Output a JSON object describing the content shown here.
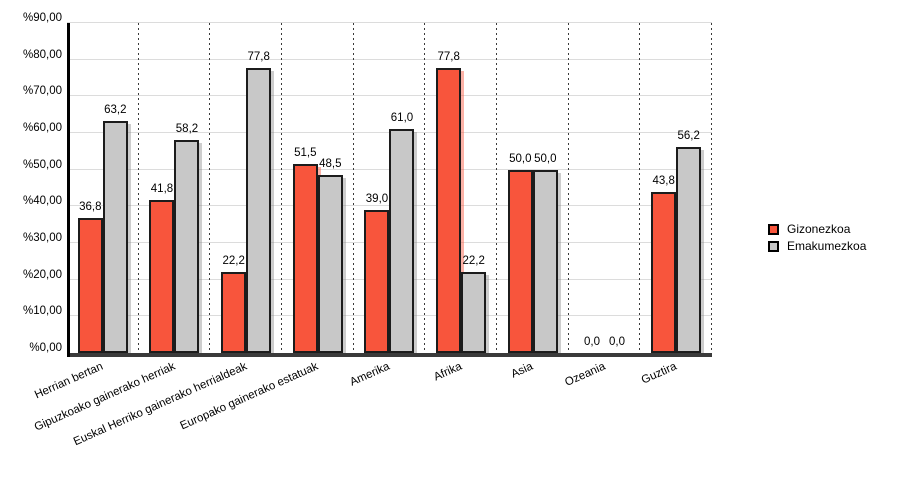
{
  "chart_data": {
    "type": "bar",
    "title": "",
    "categories": [
      "Herrian bertan",
      "Gipuzkoako gainerako herriak",
      "Euskal Herriko gainerako herrialdeak",
      "Europako gainerako estatuak",
      "Amerika",
      "Afrika",
      "Asia",
      "Ozeania",
      "Guztira"
    ],
    "series": [
      {
        "name": "Gizonezkoa",
        "color": "#F8553C",
        "shadow_color": "rgba(248,85,60,0.45)",
        "values": [
          36.8,
          41.8,
          22.2,
          51.5,
          39.0,
          77.8,
          50.0,
          0.0,
          43.8
        ],
        "labels": [
          "36,8",
          "41,8",
          "22,2",
          "51,5",
          "39,0",
          "77,8",
          "50,0",
          "0,0",
          "43,8"
        ]
      },
      {
        "name": "Emakumezkoa",
        "color": "#C8C8C8",
        "shadow_color": "rgba(130,130,130,0.40)",
        "values": [
          63.2,
          58.2,
          77.8,
          48.5,
          61.0,
          22.2,
          50.0,
          0.0,
          56.2
        ],
        "labels": [
          "63,2",
          "58,2",
          "77,8",
          "48,5",
          "61,0",
          "22,2",
          "50,0",
          "0,0",
          "56,2"
        ]
      }
    ],
    "y_axis": {
      "ticks": [
        "%0,00",
        "%10,00",
        "%20,00",
        "%30,00",
        "%40,00",
        "%50,00",
        "%60,00",
        "%70,00",
        "%80,00",
        "%90,00"
      ],
      "min": 0,
      "max": 90,
      "tick_step": 10
    },
    "grid": true,
    "x_label_angle_deg": 24,
    "legend_position": "right"
  }
}
